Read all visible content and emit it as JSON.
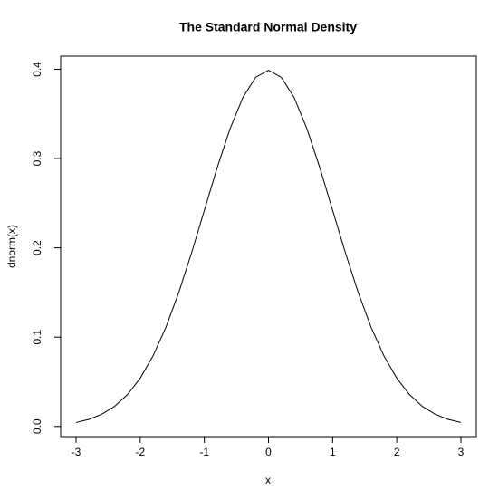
{
  "chart_data": {
    "type": "line",
    "title": "The Standard Normal Density",
    "x_label": "x",
    "y_label": "dnorm(x)",
    "x": [
      -3,
      -2.8,
      -2.6,
      -2.4,
      -2.2,
      -2,
      -1.8,
      -1.6,
      -1.4,
      -1.2,
      -1,
      -0.8,
      -0.6,
      -0.4,
      -0.2,
      0,
      0.2,
      0.4,
      0.6,
      0.8,
      1,
      1.2,
      1.4,
      1.6,
      1.8,
      2,
      2.2,
      2.4,
      2.6,
      2.8,
      3
    ],
    "values": [
      0.0044,
      0.0079,
      0.0136,
      0.0224,
      0.0355,
      0.054,
      0.079,
      0.1109,
      0.1497,
      0.1942,
      0.242,
      0.2897,
      0.3332,
      0.3683,
      0.391,
      0.3989,
      0.391,
      0.3683,
      0.3332,
      0.2897,
      0.242,
      0.1942,
      0.1497,
      0.1109,
      0.079,
      0.054,
      0.0355,
      0.0224,
      0.0136,
      0.0079,
      0.0044
    ],
    "color": "#000000",
    "xlim": [
      -3.24,
      3.24
    ],
    "ylim": [
      -0.0114,
      0.4147
    ],
    "xticks": [
      -3,
      -2,
      -1,
      0,
      1,
      2,
      3
    ],
    "yticks": [
      {
        "value": 0,
        "label": "0.0"
      },
      0.1,
      0.2,
      0.3,
      0.4
    ]
  }
}
